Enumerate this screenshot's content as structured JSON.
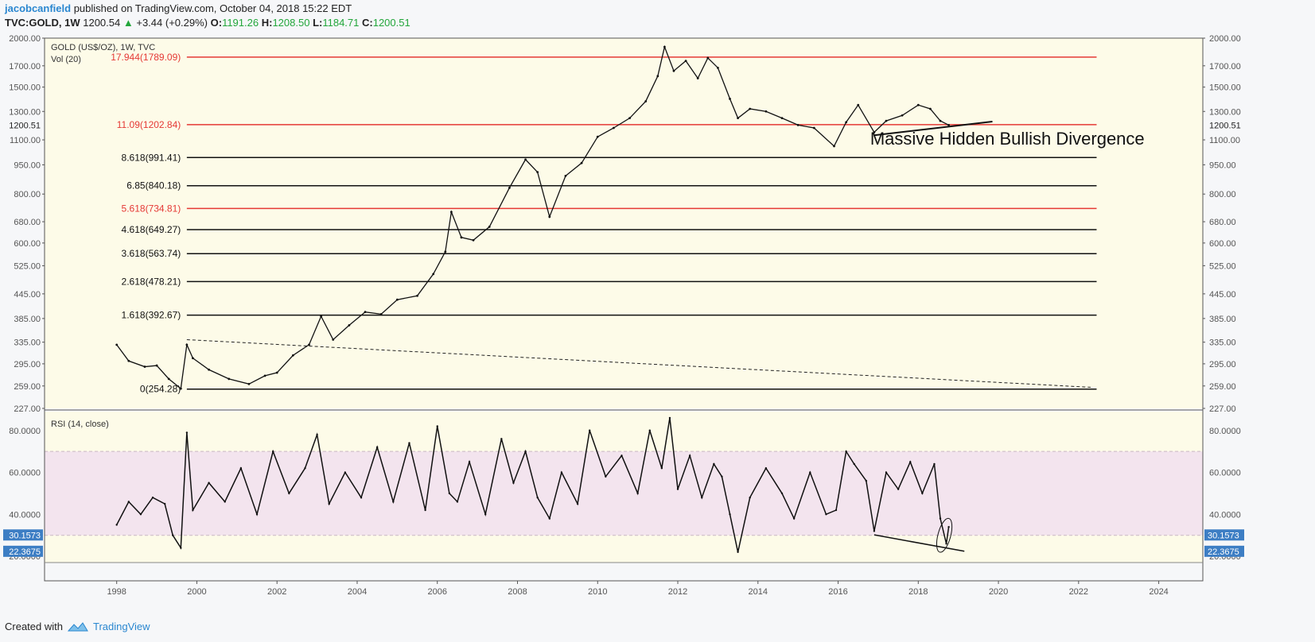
{
  "header": {
    "author": "jacobcanfield",
    "published": " published on TradingView.com, October 04, 2018 15:22 EDT",
    "symbol": "TVC:GOLD, 1W",
    "last": "1200.54",
    "change": "+3.44 (+0.29%)",
    "o_label": "O:",
    "o_value": "1191.26",
    "h_label": "H:",
    "h_value": "1208.50",
    "l_label": "L:",
    "l_value": "1184.71",
    "c_label": "C:",
    "c_value": "1200.51"
  },
  "footer": {
    "created_with": "Created with",
    "brand": "TradingView"
  },
  "colors": {
    "background": "#fdfbe8",
    "rsi_band": "#f3e4ee",
    "red_level": "#e53935",
    "black": "#111111",
    "price_tag": "#3d7ec4",
    "axis_text": "#555555"
  },
  "chart_data": [
    {
      "type": "line",
      "title": "GOLD (US$/OZ), 1W, TVC",
      "volume_label": "Vol (20)",
      "scale": "log",
      "ylim": [
        227,
        2000
      ],
      "xlim": [
        1996.2,
        2025.1
      ],
      "y_ticks": [
        "2000.00",
        "1700.00",
        "1500.00",
        "1300.00",
        "1100.00",
        "950.00",
        "800.00",
        "680.00",
        "600.00",
        "525.00",
        "445.00",
        "385.00",
        "335.00",
        "295.00",
        "259.00",
        "227.00"
      ],
      "last_price_label": "1200.51",
      "series": [
        {
          "x": [
            1998.0,
            1998.3,
            1998.7,
            1999.0,
            1999.3,
            1999.6,
            1999.75,
            1999.9,
            2000.3,
            2000.8,
            2001.3,
            2001.7,
            2002.0,
            2002.4,
            2002.8,
            2003.1,
            2003.4,
            2003.8,
            2004.2,
            2004.6,
            2005.0,
            2005.5,
            2005.9,
            2006.2,
            2006.35,
            2006.6,
            2006.9,
            2007.3,
            2007.8,
            2008.2,
            2008.5,
            2008.8,
            2009.2,
            2009.6,
            2010.0,
            2010.4,
            2010.8,
            2011.2,
            2011.5,
            2011.67,
            2011.9,
            2012.2,
            2012.5,
            2012.75,
            2013.0,
            2013.3,
            2013.5,
            2013.8,
            2014.2,
            2014.6,
            2015.0,
            2015.4,
            2015.9,
            2016.2,
            2016.5,
            2016.9,
            2017.2,
            2017.6,
            2018.0,
            2018.3,
            2018.55,
            2018.76
          ],
          "values": [
            330,
            300,
            290,
            292,
            270,
            255,
            330,
            305,
            285,
            270,
            262,
            275,
            280,
            310,
            330,
            390,
            340,
            370,
            400,
            395,
            430,
            440,
            500,
            570,
            720,
            620,
            610,
            660,
            830,
            980,
            910,
            700,
            890,
            960,
            1120,
            1180,
            1250,
            1380,
            1600,
            1900,
            1650,
            1750,
            1580,
            1780,
            1680,
            1400,
            1250,
            1320,
            1300,
            1250,
            1200,
            1180,
            1060,
            1220,
            1350,
            1150,
            1230,
            1270,
            1350,
            1320,
            1230,
            1200
          ]
        }
      ],
      "fib_levels": [
        {
          "label": "17.944(1789.09)",
          "value": 1789.09,
          "color": "red"
        },
        {
          "label": "11.09(1202.84)",
          "value": 1202.84,
          "color": "red"
        },
        {
          "label": "8.618(991.41)",
          "value": 991.41,
          "color": "black"
        },
        {
          "label": "6.85(840.18)",
          "value": 840.18,
          "color": "black"
        },
        {
          "label": "5.618(734.81)",
          "value": 734.81,
          "color": "red"
        },
        {
          "label": "4.618(649.27)",
          "value": 649.27,
          "color": "black"
        },
        {
          "label": "3.618(563.74)",
          "value": 563.74,
          "color": "black"
        },
        {
          "label": "2.618(478.21)",
          "value": 478.21,
          "color": "black"
        },
        {
          "label": "1.618(392.67)",
          "value": 392.67,
          "color": "black"
        },
        {
          "label": "0(254.28)",
          "value": 254.28,
          "color": "black"
        }
      ],
      "fib_end_x": 2022.45,
      "trendline_price": {
        "x": [
          2016.9,
          2019.85
        ],
        "y": [
          1130,
          1225
        ]
      },
      "dashed_line": {
        "x": [
          1999.75,
          2022.3
        ],
        "y": [
          340,
          257
        ]
      },
      "annotation": "Massive Hidden Bullish Divergence"
    },
    {
      "type": "line",
      "title": "RSI (14, close)",
      "ylim": [
        17,
        89
      ],
      "y_ticks": [
        "80.0000",
        "60.0000",
        "40.0000",
        "20.0000"
      ],
      "band": [
        30,
        70
      ],
      "current_labels": [
        "30.1573",
        "22.3675"
      ],
      "x_ticks": [
        "1998",
        "2000",
        "2002",
        "2004",
        "2006",
        "2008",
        "2010",
        "2012",
        "2014",
        "2016",
        "2018",
        "2020",
        "2022",
        "2024"
      ],
      "series": [
        {
          "x": [
            1998.0,
            1998.3,
            1998.6,
            1998.9,
            1999.2,
            1999.4,
            1999.6,
            1999.75,
            1999.9,
            2000.3,
            2000.7,
            2001.1,
            2001.5,
            2001.9,
            2002.3,
            2002.7,
            2003.0,
            2003.3,
            2003.7,
            2004.1,
            2004.5,
            2004.9,
            2005.3,
            2005.7,
            2006.0,
            2006.3,
            2006.5,
            2006.8,
            2007.2,
            2007.6,
            2007.9,
            2008.2,
            2008.5,
            2008.8,
            2009.1,
            2009.5,
            2009.8,
            2010.2,
            2010.6,
            2011.0,
            2011.3,
            2011.6,
            2011.8,
            2012.0,
            2012.3,
            2012.6,
            2012.9,
            2013.1,
            2013.3,
            2013.5,
            2013.8,
            2014.2,
            2014.6,
            2014.9,
            2015.3,
            2015.7,
            2015.95,
            2016.2,
            2016.4,
            2016.7,
            2016.9,
            2017.2,
            2017.5,
            2017.8,
            2018.1,
            2018.4,
            2018.55,
            2018.7,
            2018.76
          ],
          "values": [
            35,
            46,
            40,
            48,
            45,
            30,
            24,
            79,
            42,
            55,
            46,
            62,
            40,
            70,
            50,
            62,
            78,
            45,
            60,
            48,
            72,
            46,
            74,
            42,
            82,
            50,
            46,
            65,
            40,
            76,
            55,
            70,
            48,
            38,
            60,
            45,
            80,
            58,
            68,
            50,
            80,
            62,
            86,
            52,
            68,
            48,
            64,
            58,
            40,
            22,
            48,
            62,
            50,
            38,
            60,
            40,
            42,
            70,
            64,
            56,
            32,
            60,
            52,
            65,
            50,
            64,
            38,
            26,
            34
          ]
        }
      ],
      "trendline_rsi": {
        "x": [
          2016.9,
          2019.15
        ],
        "y": [
          30.2,
          22.4
        ]
      },
      "highlight_ellipse": {
        "x": 2018.65,
        "y": 30
      }
    }
  ]
}
